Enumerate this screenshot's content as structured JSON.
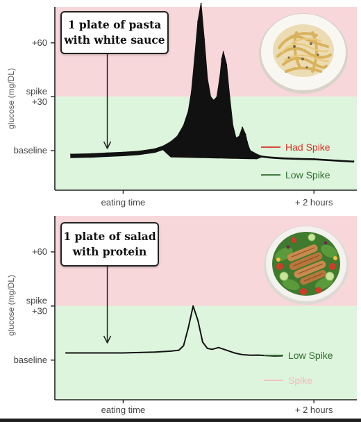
{
  "chart_data": [
    {
      "type": "area",
      "ylabel": "glucose (mg/DL)",
      "y_ticks": [
        {
          "lines": [
            "+60"
          ],
          "value": 60
        },
        {
          "lines": [
            "spike",
            "+30"
          ],
          "value": 30
        },
        {
          "lines": [
            "baseline"
          ],
          "value": 0
        }
      ],
      "x_ticks": [
        {
          "label": "eating time",
          "value": 0
        },
        {
          "label": "+ 2 hours",
          "value": 120
        }
      ],
      "xlim": [
        -43,
        147
      ],
      "ylim": [
        -22,
        80
      ],
      "zones": [
        {
          "name": "spike zone",
          "color": "#f7d7da",
          "from": 30,
          "to": 80
        },
        {
          "name": "low zone",
          "color": "#ddf5dc",
          "from": -22,
          "to": 30
        }
      ],
      "callout": {
        "lines": [
          "1 plate of pasta",
          "with white sauce"
        ]
      },
      "arrow_at_x": -10,
      "legend": [
        {
          "label": "Had Spike",
          "color": "#d93025"
        },
        {
          "label": "Low Spike",
          "color": "#2e6b2e"
        }
      ],
      "series": [
        {
          "fill": true,
          "color": "#111111",
          "x": [
            -33,
            -20,
            -10,
            0,
            10,
            20,
            25,
            30,
            34,
            38,
            41,
            43,
            45,
            47,
            49,
            51,
            53,
            55,
            57,
            59,
            61,
            62,
            63,
            65,
            67,
            69,
            71,
            73,
            75,
            77,
            78,
            79,
            80,
            82,
            84,
            87,
            92,
            100,
            110,
            120,
            135,
            145
          ],
          "y": [
            -2,
            -1.7,
            -1.3,
            -0.9,
            -0.3,
            1,
            2.5,
            5,
            8,
            14,
            22,
            33,
            52,
            72,
            82,
            62,
            40,
            30,
            28,
            30,
            42,
            51,
            55,
            48,
            30,
            14,
            7,
            8,
            13,
            9,
            5,
            2,
            0,
            -1,
            -2,
            -3,
            -3.5,
            -4,
            -4.3,
            -4.5,
            -5.3,
            -5.8
          ]
        }
      ]
    },
    {
      "type": "line",
      "ylabel": "glucose (mg/DL)",
      "y_ticks": [
        {
          "lines": [
            "+60"
          ],
          "value": 60
        },
        {
          "lines": [
            "spike",
            "+30"
          ],
          "value": 30
        },
        {
          "lines": [
            "baseline"
          ],
          "value": 0
        }
      ],
      "x_ticks": [
        {
          "label": "eating time",
          "value": 0
        },
        {
          "label": "+ 2 hours",
          "value": 120
        }
      ],
      "xlim": [
        -43,
        147
      ],
      "ylim": [
        -22,
        80
      ],
      "zones": [
        {
          "name": "spike zone",
          "color": "#f7d7da",
          "from": 30,
          "to": 80
        },
        {
          "name": "low zone",
          "color": "#ddf5dc",
          "from": -22,
          "to": 30
        }
      ],
      "callout": {
        "lines": [
          "1 plate of salad",
          "with protein"
        ]
      },
      "arrow_at_x": -10,
      "legend": [
        {
          "label": "Low Spike",
          "color": "#2e6b2e"
        },
        {
          "label": "Spike",
          "color": "#f2b8bd"
        }
      ],
      "series": [
        {
          "fill": false,
          "color": "#111111",
          "x": [
            -36,
            -20,
            -10,
            0,
            10,
            20,
            30,
            35,
            38,
            41,
            44,
            47,
            50,
            53,
            56,
            60,
            65,
            70,
            75,
            80,
            85,
            90,
            95,
            100
          ],
          "y": [
            4,
            4,
            4,
            4,
            4.2,
            4.5,
            5,
            5.5,
            8,
            18,
            30,
            22,
            10,
            6.5,
            6,
            7,
            5.5,
            4,
            3,
            2.7,
            2.8,
            2.5,
            2.3,
            2.4
          ]
        }
      ]
    }
  ]
}
